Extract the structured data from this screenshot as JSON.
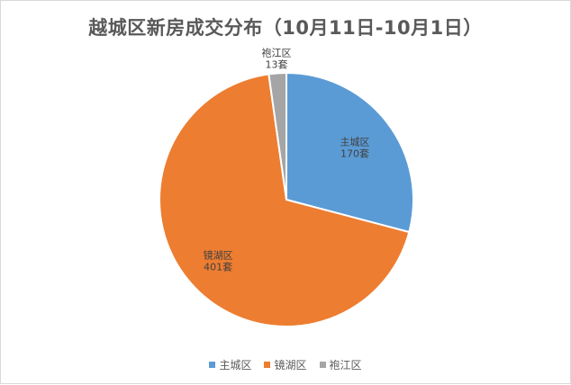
{
  "chart_data": {
    "type": "pie",
    "title": "越城区新房成交分布（10月11日-10月1日）",
    "categories": [
      "主城区",
      "镜湖区",
      "袍江区"
    ],
    "values": [
      170,
      401,
      13
    ],
    "unit": "套",
    "colors": [
      "#5B9BD5",
      "#ED7D31",
      "#A5A5A5"
    ],
    "data_labels": [
      "170套",
      "401套",
      "13套"
    ],
    "legend_position": "bottom",
    "start_angle": "12 o'clock",
    "direction": "clockwise"
  }
}
